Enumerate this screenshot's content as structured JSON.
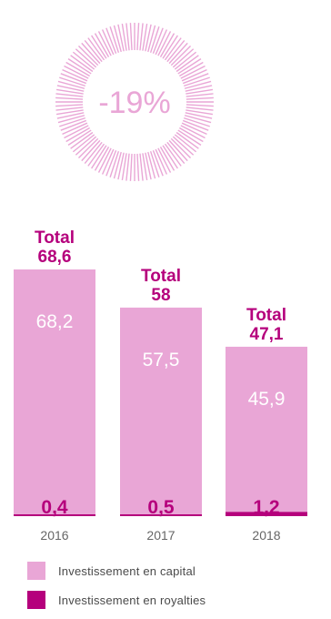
{
  "badge": {
    "text": "-19%"
  },
  "colors": {
    "capital": "#e9a6d6",
    "royalties": "#b5007c",
    "total": "#b5007c",
    "inner_value": "#ffffff",
    "year_label": "#666666",
    "badge_ring": "#e9a6d6",
    "badge_text": "#e9a6d6"
  },
  "chart_data": {
    "type": "bar",
    "stacked": true,
    "categories": [
      "2016",
      "2017",
      "2018"
    ],
    "series": [
      {
        "name": "Investissement en capital",
        "values": [
          68.2,
          57.5,
          45.9
        ],
        "labels": [
          "68,2",
          "57,5",
          "45,9"
        ]
      },
      {
        "name": "Investissement en royalties",
        "values": [
          0.4,
          0.5,
          1.2
        ],
        "labels": [
          "0,4",
          "0,5",
          "1,2"
        ]
      }
    ],
    "totals": [
      {
        "label": "Total",
        "value": "68,6"
      },
      {
        "label": "Total",
        "value": "58"
      },
      {
        "label": "Total",
        "value": "47,1"
      }
    ],
    "ylim": [
      0,
      68.6
    ],
    "grid": false,
    "legend_position": "bottom"
  },
  "legend": [
    {
      "label": "Investissement en capital"
    },
    {
      "label": "Investissement en royalties"
    }
  ]
}
